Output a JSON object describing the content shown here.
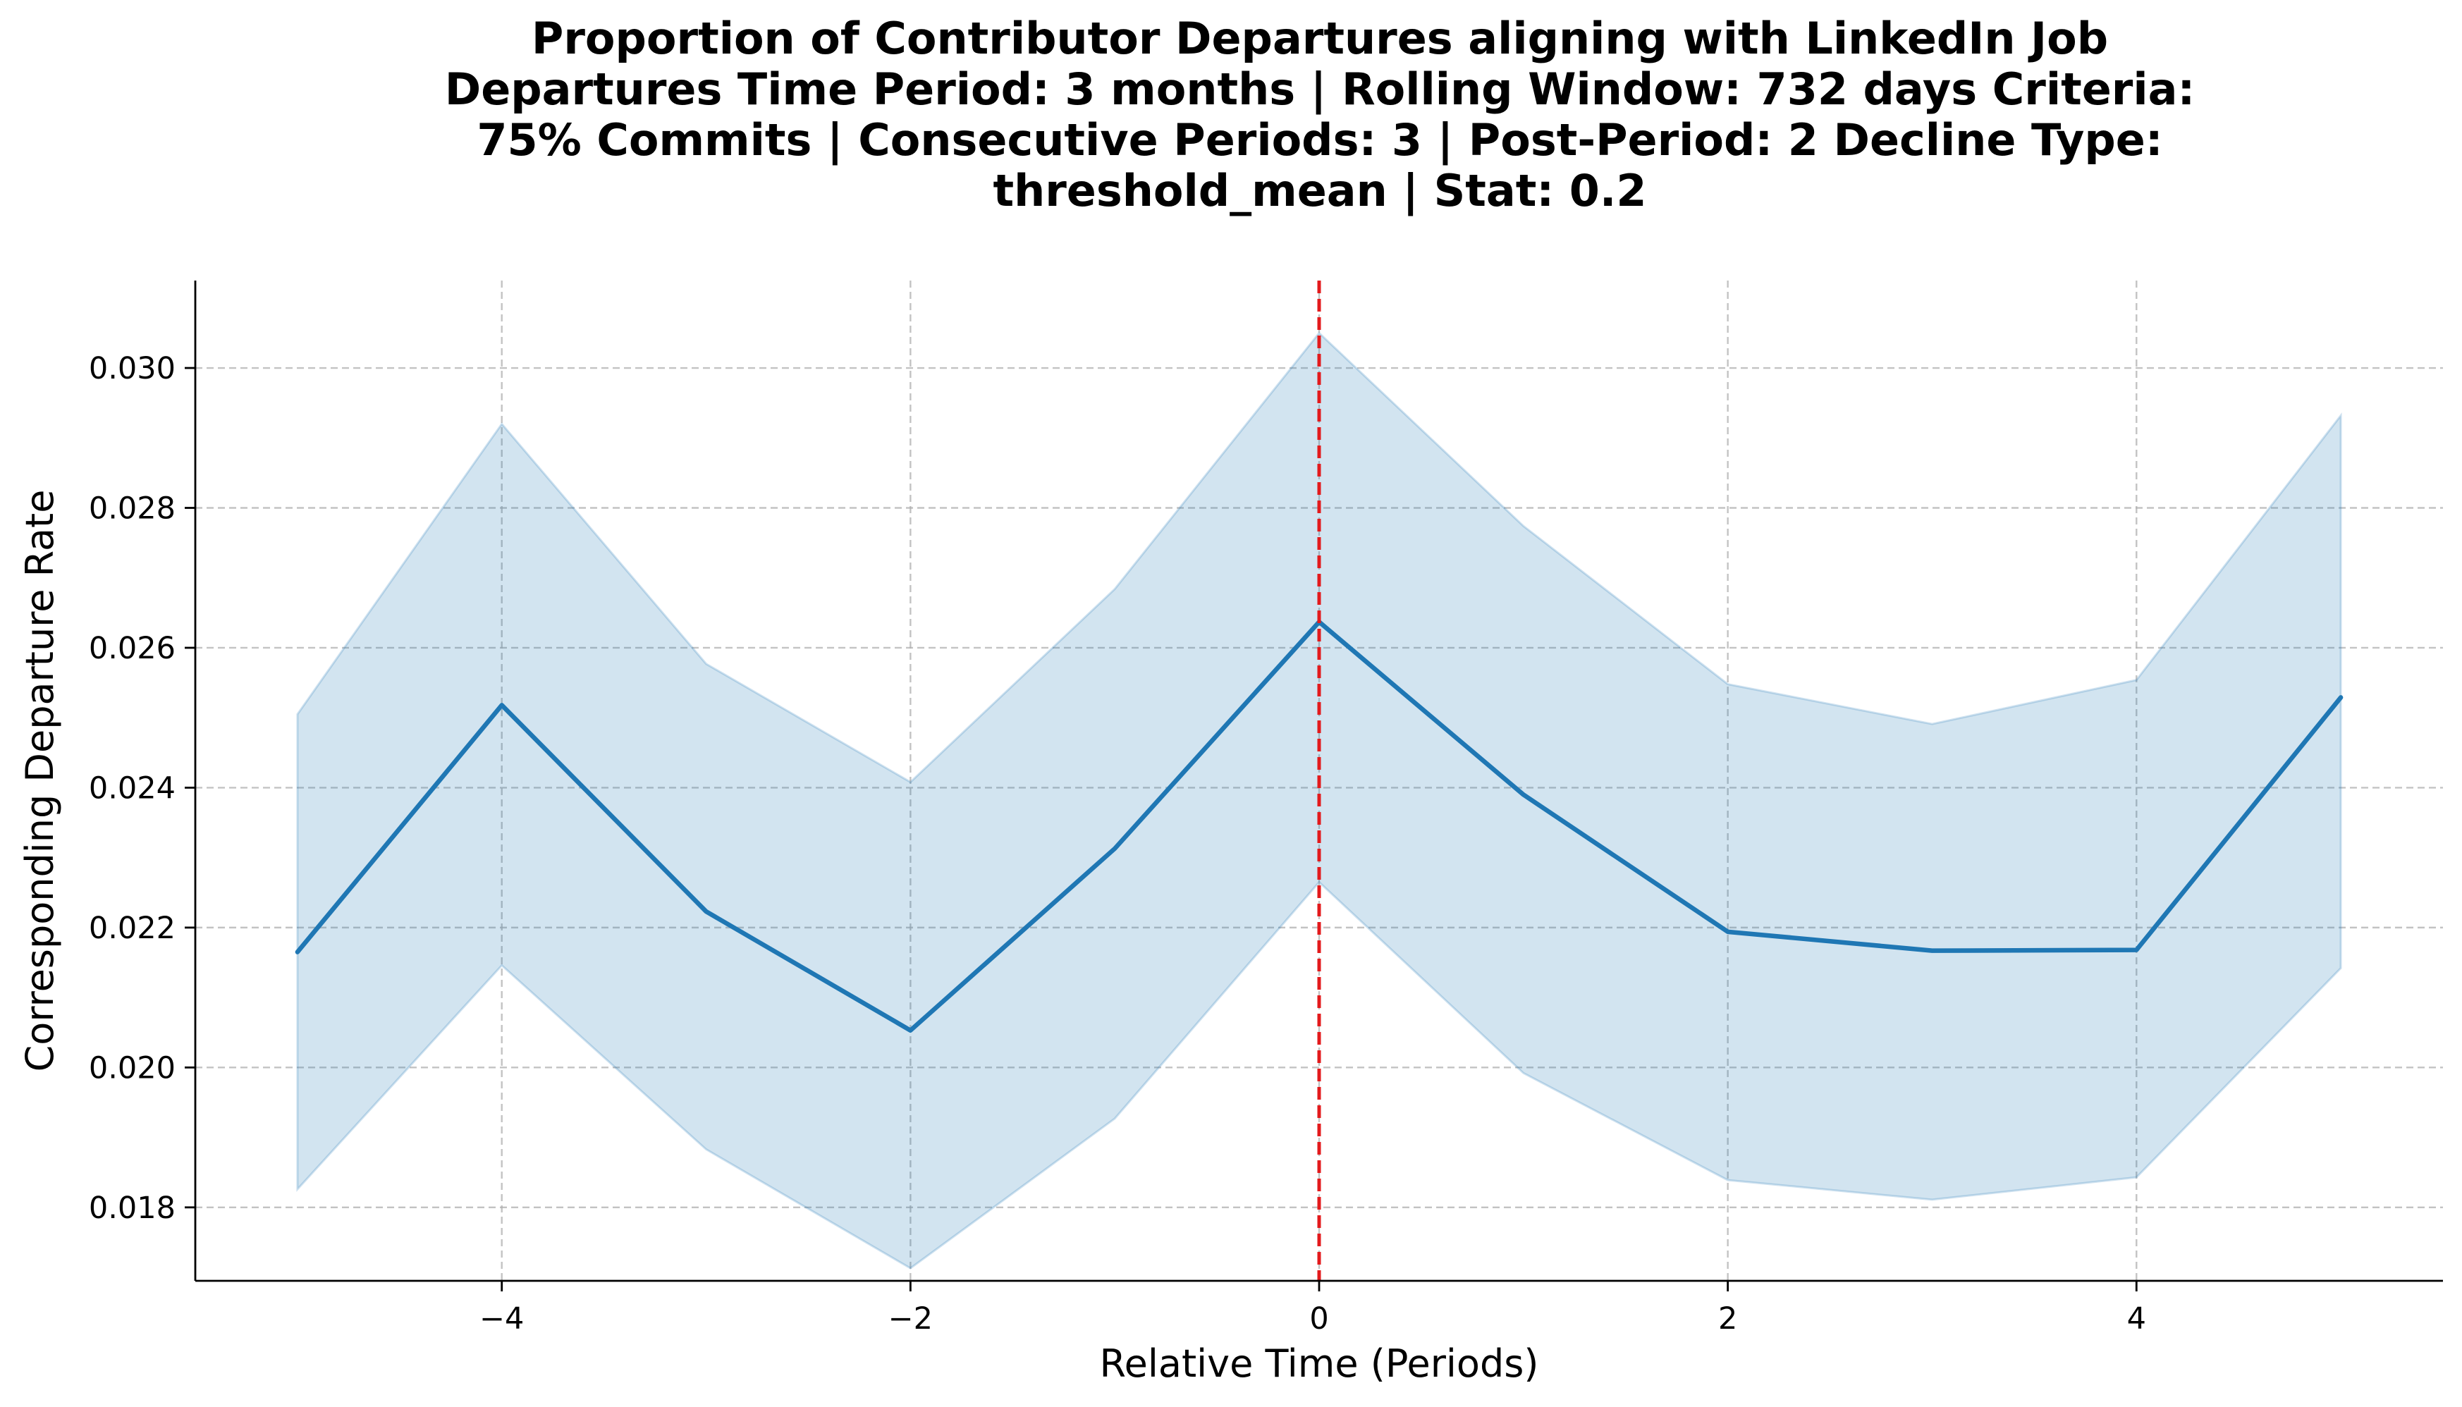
{
  "chart_data": {
    "type": "line",
    "title_lines": [
      "Proportion of Contributor Departures aligning with LinkedIn Job",
      "Departures Time Period: 3 months | Rolling Window: 732 days  Criteria:",
      "75% Commits | Consecutive Periods: 3 | Post-Period: 2 Decline Type:",
      "threshold_mean | Stat: 0.2"
    ],
    "xlabel": "Relative Time (Periods)",
    "ylabel": "Corresponding Departure Rate",
    "xlim": [
      -5.5,
      5.5
    ],
    "ylim": [
      0.01695,
      0.03125
    ],
    "x_ticks": [
      -4,
      -2,
      0,
      2,
      4
    ],
    "x_tick_labels": [
      "−4",
      "−2",
      "0",
      "2",
      "4"
    ],
    "y_ticks": [
      0.018,
      0.02,
      0.022,
      0.024,
      0.026,
      0.028,
      0.03
    ],
    "y_tick_labels": [
      "0.018",
      "0.020",
      "0.022",
      "0.024",
      "0.026",
      "0.028",
      "0.030"
    ],
    "grid": true,
    "vline": {
      "x": 0,
      "color": "#e31a1c",
      "style": "dashed"
    },
    "series": [
      {
        "x": [
          -5,
          -4,
          -3,
          -2,
          -1,
          0,
          1,
          2,
          3,
          4,
          5
        ],
        "y": [
          0.02165,
          0.02518,
          0.02223,
          0.02053,
          0.02313,
          0.02637,
          0.0239,
          0.02194,
          0.02167,
          0.02168,
          0.02529
        ],
        "lower": [
          0.01826,
          0.02146,
          0.01883,
          0.01713,
          0.01927,
          0.02265,
          0.01992,
          0.01839,
          0.01811,
          0.01843,
          0.02142
        ],
        "upper": [
          0.02505,
          0.0292,
          0.02577,
          0.02408,
          0.02684,
          0.0305,
          0.02774,
          0.02548,
          0.02491,
          0.02554,
          0.02932
        ],
        "color": "#1f77b4",
        "band_color": "#1f77b4"
      }
    ]
  }
}
